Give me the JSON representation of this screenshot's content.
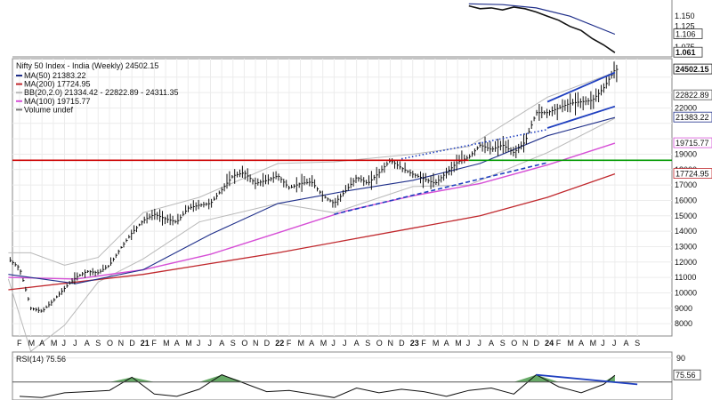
{
  "colors": {
    "ma50": "#1f2f8a",
    "ma200": "#c0282d",
    "ma100": "#d64fd6",
    "bb": "#b9b9b9",
    "price": "#111111",
    "support": "#009900",
    "resistance": "#cc0000",
    "trendline": "#1f3fbf",
    "rsi": "#111111",
    "rsi_fill": "#4c9b4c"
  },
  "chart_data": [
    {
      "type": "line",
      "panel": "relative-strength",
      "yticks": [
        "1.150",
        "1.125",
        "1.100",
        "1.075"
      ],
      "value_labels": [
        {
          "text": "1.106",
          "value": 1.106
        },
        {
          "text": "1.061",
          "value": 1.061
        }
      ],
      "series": [
        {
          "name": "",
          "x": [
            "2023-06",
            "2023-07",
            "2023-08",
            "2023-09",
            "2023-10",
            "2023-11",
            "2023-12",
            "2024-01",
            "2024-02",
            "2024-03",
            "2024-04",
            "2024-05",
            "2024-06",
            "2024-07"
          ],
          "values": [
            1.175,
            1.168,
            1.17,
            1.165,
            1.172,
            1.168,
            1.16,
            1.15,
            1.14,
            1.125,
            1.115,
            1.095,
            1.08,
            1.061
          ]
        },
        {
          "name": "",
          "x": [
            "2023-06",
            "2023-09",
            "2023-12",
            "2024-03",
            "2024-07"
          ],
          "values": [
            1.18,
            1.178,
            1.17,
            1.15,
            1.106
          ]
        }
      ]
    },
    {
      "type": "line",
      "panel": "price",
      "title": "Nifty 50 Index - India (Weekly) 24502.15",
      "legend": [
        {
          "text": "MA(50) 21383.22",
          "color": "#1f2f8a"
        },
        {
          "text": "MA(200) 17724.95",
          "color": "#c0282d"
        },
        {
          "text": "BB(20,2.0) 21334.42 - 22822.89 - 24311.35",
          "color": "#b9b9b9"
        },
        {
          "text": "MA(100) 19715.77",
          "color": "#d64fd6"
        },
        {
          "text": "Volume undef",
          "color": "#777777"
        }
      ],
      "legend_placement": "top-left",
      "ylim": [
        7200,
        25200
      ],
      "y_scale": "linear",
      "yticks": [
        24000,
        23000,
        22000,
        21000,
        20000,
        19000,
        18000,
        17000,
        16000,
        15000,
        14000,
        13000,
        12000,
        11000,
        10000,
        9000,
        8000
      ],
      "ytick_labels": [
        "",
        "",
        "22000",
        "",
        "",
        "19000",
        "18000",
        "17000",
        "16000",
        "15000",
        "14000",
        "13000",
        "12000",
        "11000",
        "10000",
        "9000",
        "8000"
      ],
      "value_labels": [
        {
          "text": "24502.15",
          "value": 24502.15,
          "bold": true
        },
        {
          "text": "22822.89",
          "value": 22822.89
        },
        {
          "text": "21383.22",
          "value": 21383.22
        },
        {
          "text": "19715.77",
          "value": 19715.77
        },
        {
          "text": "17724.95",
          "value": 17724.95
        }
      ],
      "xlim": [
        "2020-02",
        "2024-08"
      ],
      "x_tick_labels": [
        {
          "text": "F",
          "x": "2020-02"
        },
        {
          "text": "M",
          "x": "2020-03"
        },
        {
          "text": "A",
          "x": "2020-04"
        },
        {
          "text": "M",
          "x": "2020-05"
        },
        {
          "text": "J",
          "x": "2020-06"
        },
        {
          "text": "J",
          "x": "2020-07"
        },
        {
          "text": "A",
          "x": "2020-08"
        },
        {
          "text": "S",
          "x": "2020-09"
        },
        {
          "text": "O",
          "x": "2020-10"
        },
        {
          "text": "N",
          "x": "2020-11"
        },
        {
          "text": "D",
          "x": "2020-12"
        },
        {
          "text": "21",
          "x": "2021-01",
          "bold": true
        },
        {
          "text": "F",
          "x": "2021-02"
        },
        {
          "text": "M",
          "x": "2021-03"
        },
        {
          "text": "A",
          "x": "2021-04"
        },
        {
          "text": "M",
          "x": "2021-05"
        },
        {
          "text": "J",
          "x": "2021-06"
        },
        {
          "text": "J",
          "x": "2021-07"
        },
        {
          "text": "A",
          "x": "2021-08"
        },
        {
          "text": "S",
          "x": "2021-09"
        },
        {
          "text": "O",
          "x": "2021-10"
        },
        {
          "text": "N",
          "x": "2021-11"
        },
        {
          "text": "D",
          "x": "2021-12"
        },
        {
          "text": "22",
          "x": "2022-01",
          "bold": true
        },
        {
          "text": "F",
          "x": "2022-02"
        },
        {
          "text": "M",
          "x": "2022-03"
        },
        {
          "text": "A",
          "x": "2022-04"
        },
        {
          "text": "M",
          "x": "2022-05"
        },
        {
          "text": "J",
          "x": "2022-06"
        },
        {
          "text": "J",
          "x": "2022-07"
        },
        {
          "text": "A",
          "x": "2022-08"
        },
        {
          "text": "S",
          "x": "2022-09"
        },
        {
          "text": "O",
          "x": "2022-10"
        },
        {
          "text": "N",
          "x": "2022-11"
        },
        {
          "text": "D",
          "x": "2022-12"
        },
        {
          "text": "23",
          "x": "2023-01",
          "bold": true
        },
        {
          "text": "F",
          "x": "2023-02"
        },
        {
          "text": "M",
          "x": "2023-03"
        },
        {
          "text": "A",
          "x": "2023-04"
        },
        {
          "text": "M",
          "x": "2023-05"
        },
        {
          "text": "J",
          "x": "2023-06"
        },
        {
          "text": "J",
          "x": "2023-07"
        },
        {
          "text": "A",
          "x": "2023-08"
        },
        {
          "text": "S",
          "x": "2023-09"
        },
        {
          "text": "O",
          "x": "2023-10"
        },
        {
          "text": "N",
          "x": "2023-11"
        },
        {
          "text": "D",
          "x": "2023-12"
        },
        {
          "text": "24",
          "x": "2024-01",
          "bold": true
        },
        {
          "text": "F",
          "x": "2024-02"
        },
        {
          "text": "M",
          "x": "2024-03"
        },
        {
          "text": "A",
          "x": "2024-04"
        },
        {
          "text": "M",
          "x": "2024-05"
        },
        {
          "text": "J",
          "x": "2024-06"
        },
        {
          "text": "J",
          "x": "2024-07"
        },
        {
          "text": "A",
          "x": "2024-08"
        },
        {
          "text": "S",
          "x": "2024-09"
        }
      ],
      "price": {
        "x": [
          "2020-01",
          "2020-02",
          "2020-03",
          "2020-04",
          "2020-05",
          "2020-06",
          "2020-07",
          "2020-08",
          "2020-09",
          "2020-10",
          "2020-11",
          "2020-12",
          "2021-01",
          "2021-02",
          "2021-03",
          "2021-04",
          "2021-05",
          "2021-06",
          "2021-07",
          "2021-08",
          "2021-09",
          "2021-10",
          "2021-11",
          "2021-12",
          "2022-01",
          "2022-02",
          "2022-03",
          "2022-04",
          "2022-05",
          "2022-06",
          "2022-07",
          "2022-08",
          "2022-09",
          "2022-10",
          "2022-11",
          "2022-12",
          "2023-01",
          "2023-02",
          "2023-03",
          "2023-04",
          "2023-05",
          "2023-06",
          "2023-07",
          "2023-08",
          "2023-09",
          "2023-10",
          "2023-11",
          "2023-12",
          "2024-01",
          "2024-02",
          "2024-03",
          "2024-04",
          "2024-05",
          "2024-06",
          "2024-07"
        ],
        "values": [
          12200,
          11600,
          9000,
          8800,
          9500,
          10300,
          11000,
          11400,
          11300,
          11800,
          12900,
          13900,
          14700,
          15100,
          14800,
          14600,
          15500,
          15700,
          15800,
          16700,
          17600,
          17800,
          17100,
          17300,
          17600,
          16800,
          17100,
          17200,
          16300,
          15800,
          16600,
          17500,
          17100,
          17800,
          18600,
          18100,
          17700,
          17400,
          17100,
          17800,
          18500,
          18800,
          19600,
          19300,
          19600,
          19100,
          19800,
          21700,
          21700,
          22000,
          22300,
          22400,
          22500,
          23300,
          24502
        ]
      },
      "ma50": {
        "x": [
          "2020-01",
          "2020-07",
          "2021-01",
          "2021-07",
          "2022-01",
          "2022-07",
          "2023-01",
          "2023-07",
          "2024-01",
          "2024-07"
        ],
        "values": [
          11200,
          10600,
          11500,
          13800,
          15800,
          16600,
          17300,
          18400,
          20200,
          21383
        ]
      },
      "ma100": {
        "x": [
          "2020-01",
          "2020-07",
          "2021-01",
          "2021-07",
          "2022-01",
          "2022-07",
          "2023-01",
          "2023-07",
          "2024-01",
          "2024-07"
        ],
        "values": [
          11000,
          10900,
          11500,
          12500,
          13900,
          15300,
          16300,
          17100,
          18300,
          19716
        ]
      },
      "ma200": {
        "x": [
          "2020-01",
          "2020-07",
          "2021-01",
          "2021-07",
          "2022-01",
          "2022-07",
          "2023-01",
          "2023-07",
          "2024-01",
          "2024-07"
        ],
        "values": [
          10200,
          10700,
          11200,
          11900,
          12600,
          13400,
          14200,
          15000,
          16200,
          17725
        ]
      },
      "bollinger": {
        "x": [
          "2020-01",
          "2020-03",
          "2020-06",
          "2020-09",
          "2021-01",
          "2021-06",
          "2022-01",
          "2022-06",
          "2023-01",
          "2023-06",
          "2024-01",
          "2024-07"
        ],
        "upper": [
          12600,
          12600,
          11800,
          12300,
          15200,
          16200,
          18400,
          18500,
          19000,
          19500,
          22700,
          24311
        ],
        "lower": [
          10900,
          6200,
          7900,
          10700,
          12200,
          14600,
          15800,
          15200,
          16900,
          17000,
          19100,
          21334
        ]
      },
      "support_line": {
        "value": 18604
      },
      "resistance_line": {
        "value": 18604
      },
      "trendlines": [
        {
          "style": "dashed",
          "from": {
            "x": "2022-06",
            "y": 15100
          },
          "to": {
            "x": "2024-01",
            "y": 18450
          }
        },
        {
          "style": "dotted",
          "from": {
            "x": "2022-12",
            "y": 18700
          },
          "to": {
            "x": "2024-01",
            "y": 20600
          }
        },
        {
          "style": "solid",
          "from": {
            "x": "2024-01",
            "y": 22400
          },
          "to": {
            "x": "2024-07",
            "y": 24300
          }
        },
        {
          "style": "solid",
          "from": {
            "x": "2024-01",
            "y": 20700
          },
          "to": {
            "x": "2024-07",
            "y": 22100
          }
        }
      ]
    },
    {
      "type": "line",
      "panel": "rsi",
      "title": "RSI(14) 75.56",
      "ylim": [
        55,
        95
      ],
      "yticks": [
        90
      ],
      "value_labels": [
        {
          "text": "75.56",
          "value": 75.56
        }
      ],
      "overbought_level": 70,
      "series": [
        {
          "name": "RSI(14)",
          "x": [
            "2020-02",
            "2020-04",
            "2020-06",
            "2020-08",
            "2020-10",
            "2020-12",
            "2021-02",
            "2021-04",
            "2021-06",
            "2021-08",
            "2021-10",
            "2021-12",
            "2022-02",
            "2022-04",
            "2022-06",
            "2022-08",
            "2022-10",
            "2022-12",
            "2023-02",
            "2023-04",
            "2023-06",
            "2023-08",
            "2023-10",
            "2023-12",
            "2024-02",
            "2024-04",
            "2024-06",
            "2024-07"
          ],
          "values": [
            58,
            57,
            61,
            62,
            63,
            74,
            60,
            58,
            64,
            76,
            69,
            62,
            63,
            60,
            57,
            65,
            61,
            64,
            62,
            58,
            63,
            65,
            60,
            76,
            66,
            61,
            68,
            75.56
          ]
        }
      ],
      "trendline": {
        "from": {
          "x": "2023-12",
          "y": 76
        },
        "to": {
          "x": "2024-09",
          "y": 68
        }
      }
    }
  ]
}
